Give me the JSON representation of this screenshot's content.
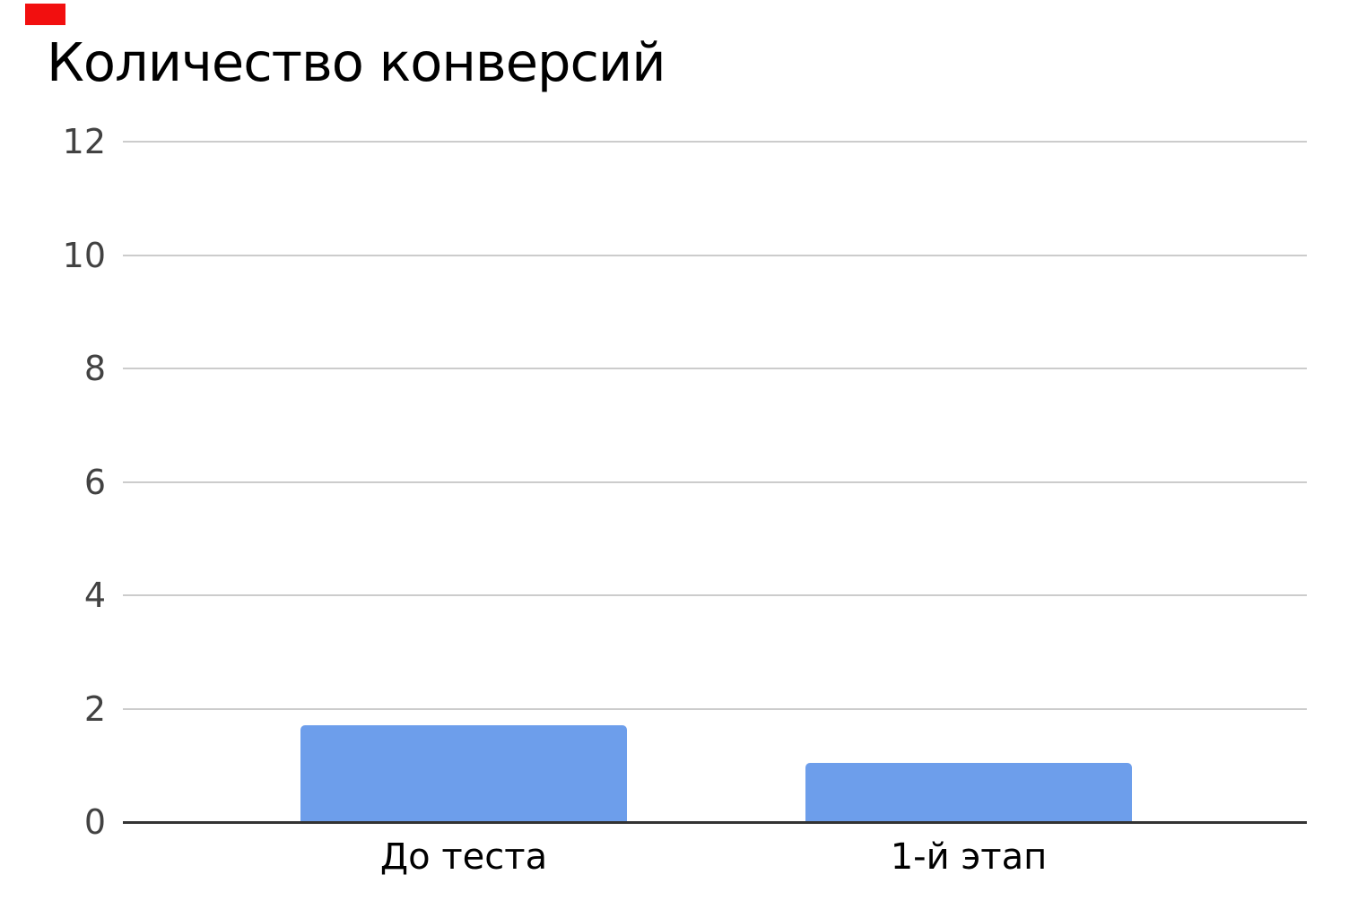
{
  "chart_data": {
    "type": "bar",
    "title": "Количество конверсий",
    "categories": [
      "До теста",
      "1-й этап"
    ],
    "values": [
      1.7,
      1.05
    ],
    "xlabel": "",
    "ylabel": "",
    "ylim": [
      0,
      12
    ],
    "yticks": [
      0,
      2,
      4,
      6,
      8,
      10,
      12
    ],
    "grid": true,
    "legend": "none"
  },
  "colors": {
    "background": "#ffffff",
    "bar": "#6d9eeb",
    "gridline": "#cccccc",
    "axis_line": "#333333",
    "y_tick_label": "#424242",
    "x_tick_label": "#000000",
    "title": "#000000",
    "corner_marker": "#f20f0f"
  }
}
